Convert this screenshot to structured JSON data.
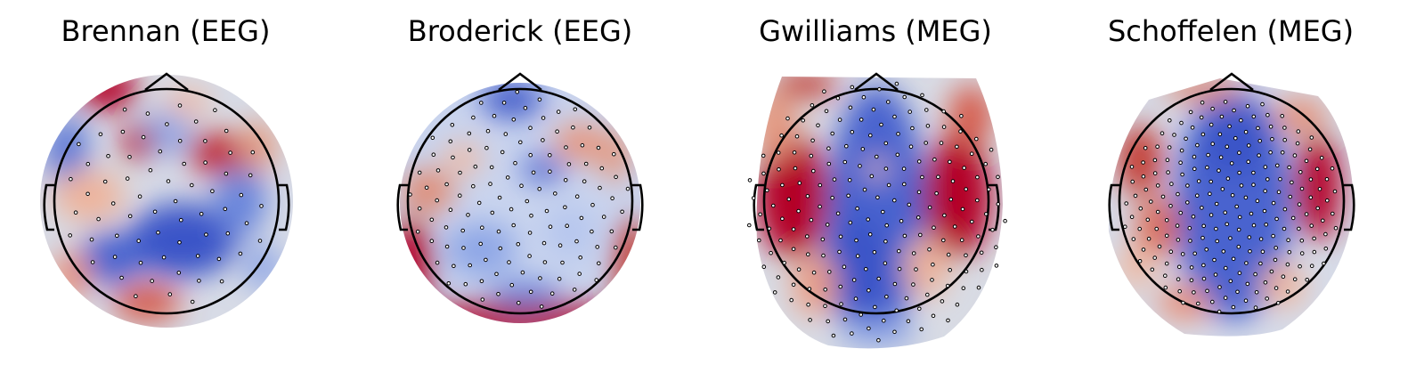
{
  "figure": {
    "panels": [
      {
        "title": "Brennan (EEG)",
        "modality": "EEG"
      },
      {
        "title": "Broderick (EEG)",
        "modality": "EEG"
      },
      {
        "title": "Gwilliams (MEG)",
        "modality": "MEG"
      },
      {
        "title": "Schoffelen (MEG)",
        "modality": "MEG"
      }
    ],
    "colormap": {
      "low": "#3b4cc0",
      "mid": "#dddddd",
      "high": "#b40426"
    }
  }
}
